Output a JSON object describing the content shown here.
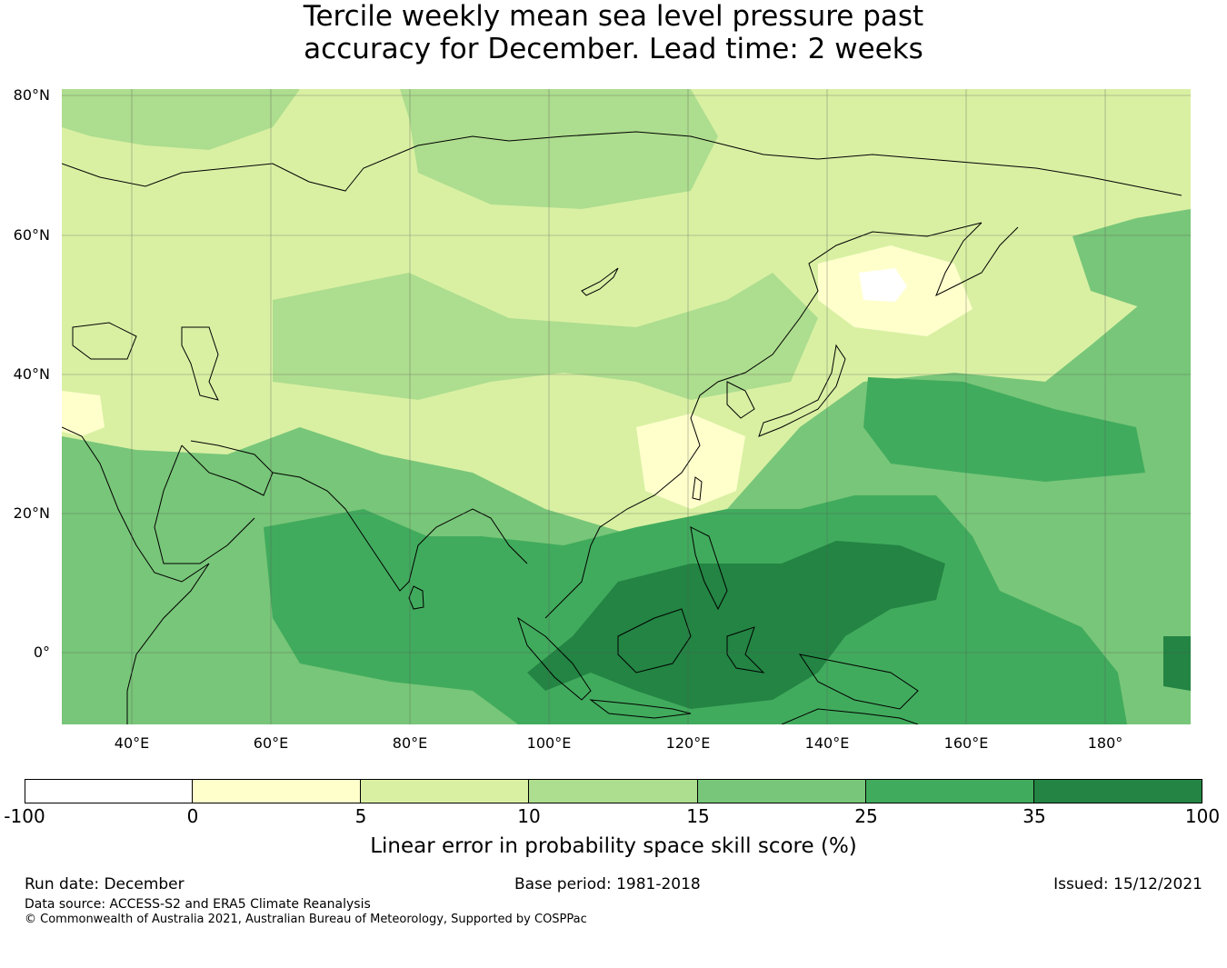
{
  "title": {
    "line1": "Tercile weekly mean sea level pressure past",
    "line2": "accuracy for December. Lead time: 2 weeks"
  },
  "map": {
    "lat_labels": [
      "80°N",
      "60°N",
      "40°N",
      "20°N",
      "0°"
    ],
    "lon_labels": [
      "40°E",
      "60°E",
      "80°E",
      "100°E",
      "120°E",
      "140°E",
      "160°E",
      "180°"
    ],
    "extent": {
      "lon": [
        30,
        192
      ],
      "lat": [
        -10,
        81
      ]
    }
  },
  "colorbar": {
    "ticks": [
      "-100",
      "0",
      "5",
      "10",
      "15",
      "25",
      "35",
      "100"
    ],
    "colors": [
      "#ffffff",
      "#ffffcc",
      "#d9f0a3",
      "#addd8e",
      "#78c679",
      "#41ab5d",
      "#238443"
    ],
    "label": "Linear error in probability space skill score (%)"
  },
  "footer": {
    "run_date": "Run date: December",
    "base_period": "Base period: 1981-2018",
    "issued": "Issued: 15/12/2021",
    "data_source": "Data source: ACCESS-S2 and ERA5 Climate Reanalysis",
    "copyright": "© Commonwealth of Australia 2021, Australian Bureau of Meteorology, Supported by COSPPac"
  }
}
